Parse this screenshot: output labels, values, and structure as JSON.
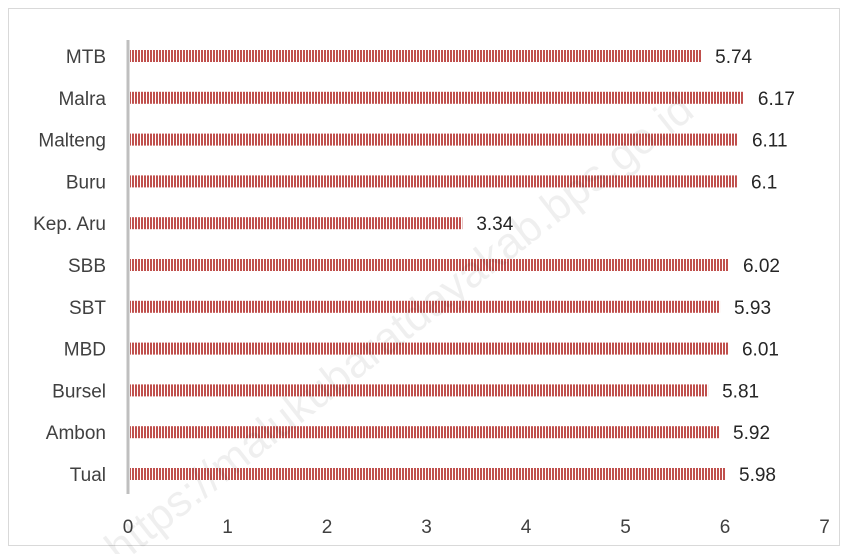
{
  "chart_data": {
    "type": "bar",
    "orientation": "horizontal",
    "categories": [
      "Tual",
      "Ambon",
      "Bursel",
      "MBD",
      "SBT",
      "SBB",
      "Kep. Aru",
      "Buru",
      "Malteng",
      "Malra",
      "MTB"
    ],
    "values": [
      5.98,
      5.92,
      5.81,
      6.01,
      5.93,
      6.02,
      3.34,
      6.1,
      6.11,
      6.17,
      5.74
    ],
    "value_labels": [
      "5.98",
      "5.92",
      "5.81",
      "6.01",
      "5.93",
      "6.02",
      "3.34",
      "6.1",
      "6.11",
      "6.17",
      "5.74"
    ],
    "xlim": [
      0,
      7
    ],
    "xticks": [
      "0",
      "1",
      "2",
      "3",
      "4",
      "5",
      "6",
      "7"
    ],
    "grid": false,
    "bar_color": "#c0504d",
    "bar_pattern": "vertical-stripes",
    "watermark": "https://malukubaratdayakab.bps.go.id"
  }
}
